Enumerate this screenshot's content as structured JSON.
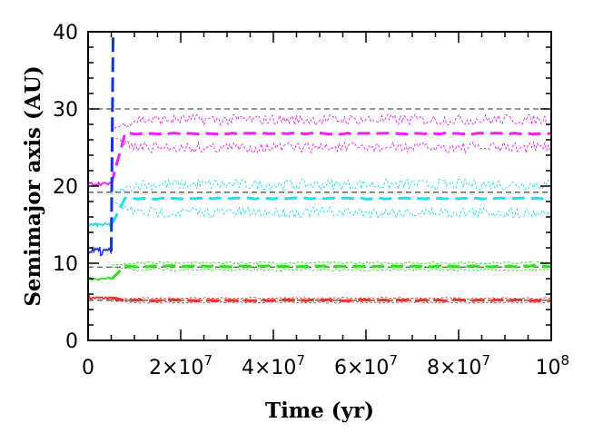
{
  "chart_data": {
    "type": "line",
    "title": "",
    "xlabel": "Time (yr)",
    "ylabel": "Semimajor axis (AU)",
    "xlim": [
      0,
      100000000
    ],
    "ylim": [
      0,
      40
    ],
    "grid": false,
    "legend": "none",
    "x_ticks": [
      {
        "value": 0,
        "mantissa": "0",
        "exponent": ""
      },
      {
        "value": 20000000,
        "mantissa": "2×10",
        "exponent": "7"
      },
      {
        "value": 40000000,
        "mantissa": "4×10",
        "exponent": "7"
      },
      {
        "value": 60000000,
        "mantissa": "6×10",
        "exponent": "7"
      },
      {
        "value": 80000000,
        "mantissa": "8×10",
        "exponent": "7"
      },
      {
        "value": 100000000,
        "mantissa": "10",
        "exponent": "8"
      }
    ],
    "y_ticks": [
      0,
      10,
      20,
      30,
      40
    ],
    "reference_lines": [
      {
        "y": 5.2,
        "color": "#555555"
      },
      {
        "y": 9.5,
        "color": "#555555"
      },
      {
        "y": 19.2,
        "color": "#555555"
      },
      {
        "y": 30.0,
        "color": "#555555"
      }
    ],
    "series": [
      {
        "color": "#e8322c",
        "initial_a": 5.5,
        "instability_time": 5000000,
        "final_a": 5.2,
        "oscillation_amplitude": 0.3
      },
      {
        "color": "#33dd22",
        "initial_a": 8.0,
        "instability_time": 5000000,
        "final_a": 9.6,
        "oscillation_amplitude": 0.5
      },
      {
        "color": "#22ddee",
        "initial_a": 15.0,
        "instability_time": 5000000,
        "final_a": 18.4,
        "oscillation_amplitude": 2.0
      },
      {
        "color": "#ee22ee",
        "initial_a": 20.3,
        "instability_time": 5000000,
        "final_a": 26.8,
        "oscillation_amplitude": 2.0
      },
      {
        "color": "#1133dd",
        "initial_a": 11.5,
        "instability_time": 5000000,
        "final_a": 40,
        "ejected": true
      }
    ]
  }
}
